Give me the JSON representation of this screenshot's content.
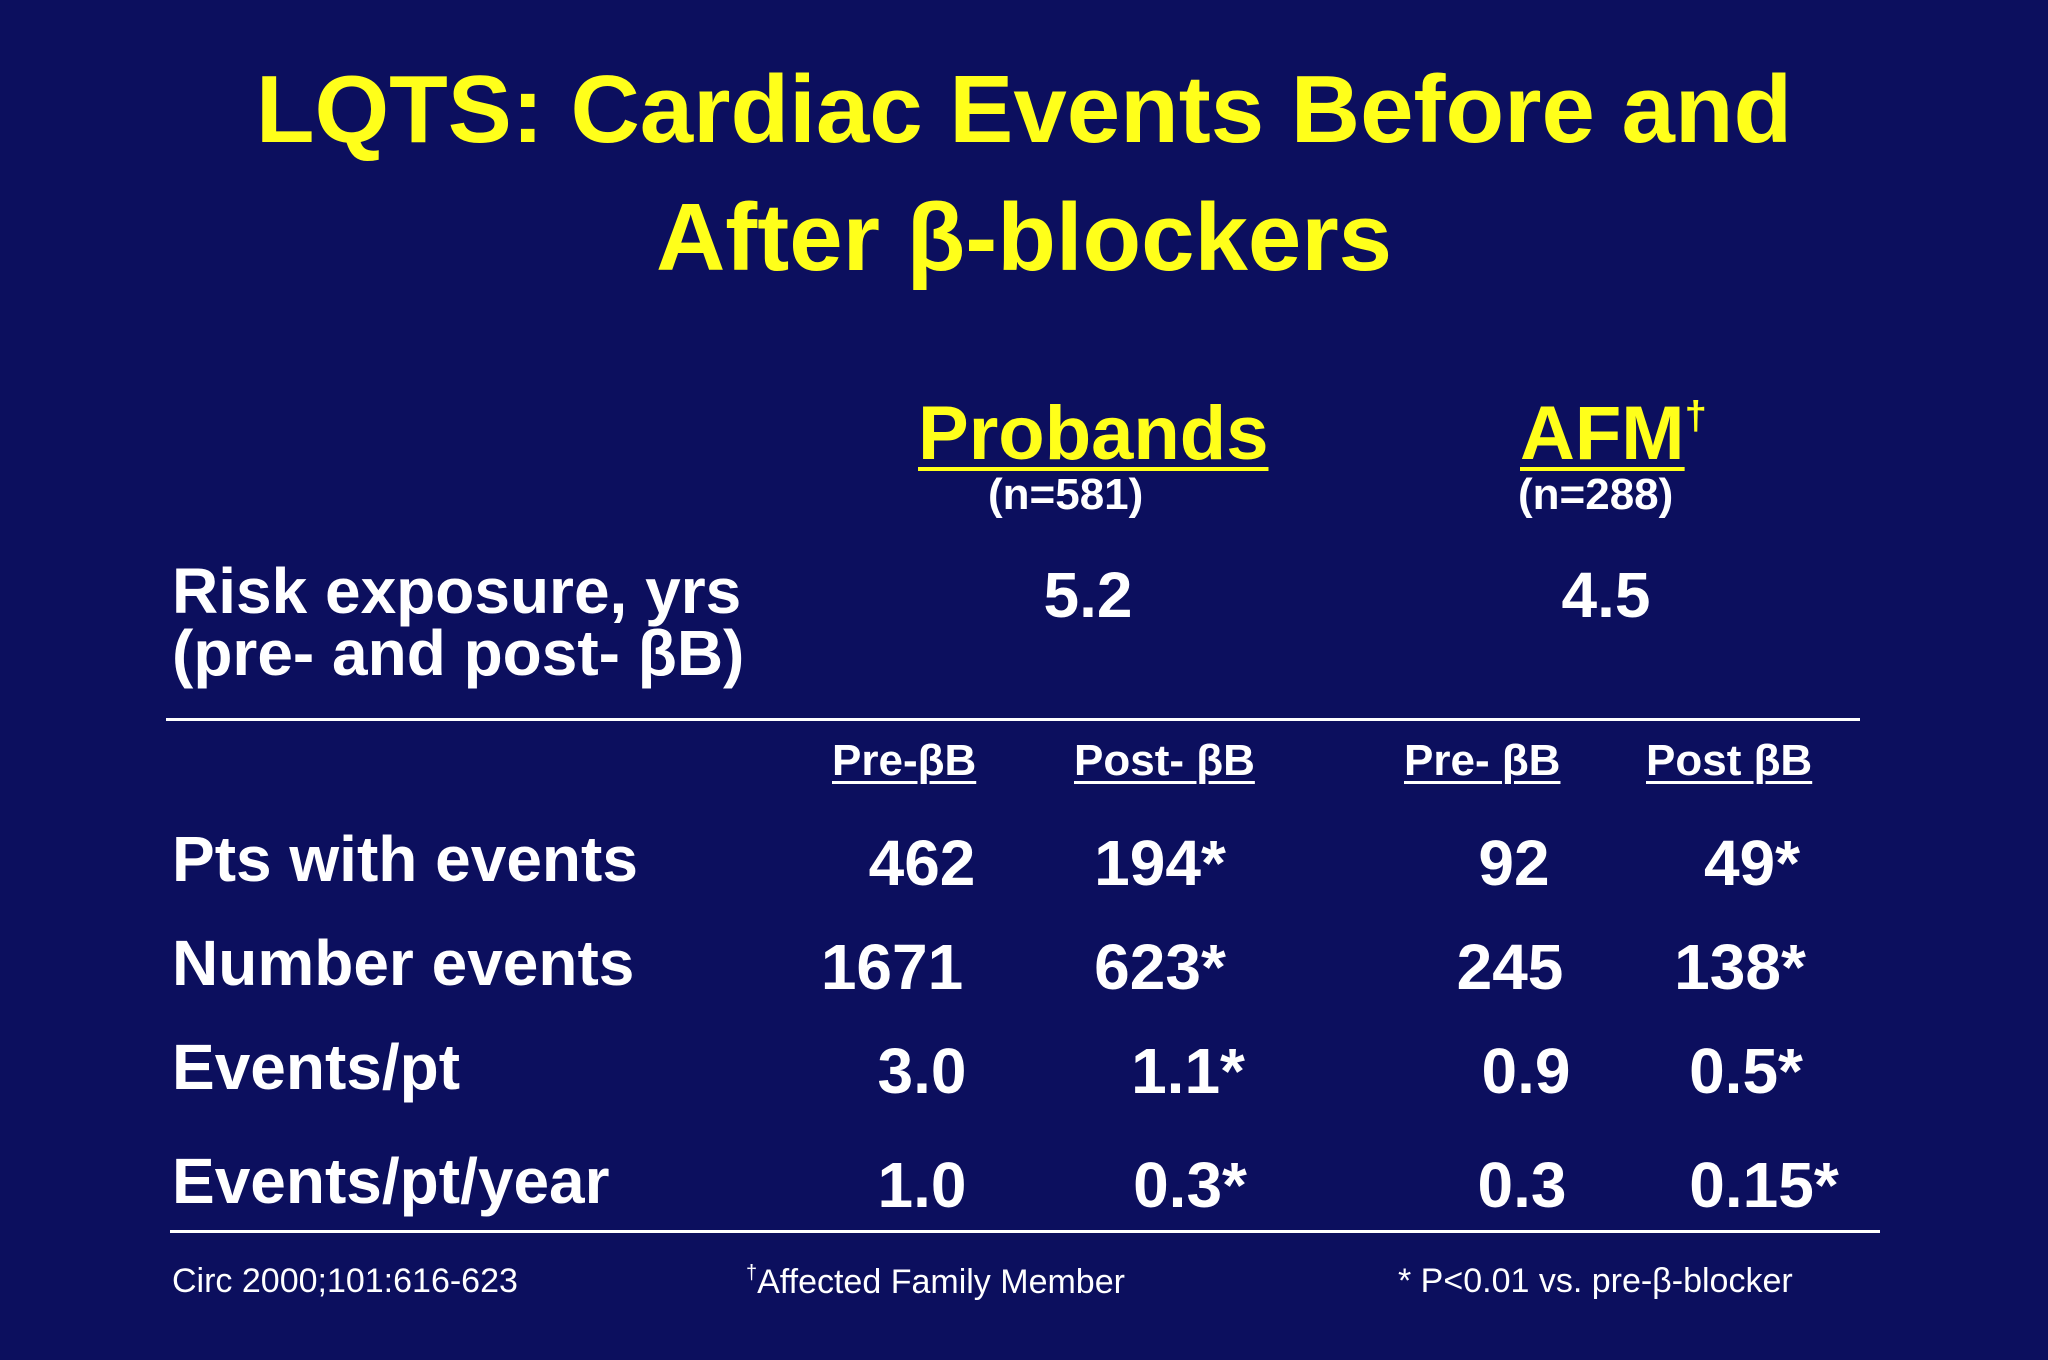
{
  "title": {
    "line1": "LQTS: Cardiac Events Before and",
    "line2": "After β-blockers"
  },
  "groups": [
    {
      "name": "Probands",
      "mark": "",
      "n": "(n=581)",
      "risk_exposure": "5.2"
    },
    {
      "name": "AFM",
      "mark": "†",
      "n": "(n=288)",
      "risk_exposure": "4.5"
    }
  ],
  "risk_label": {
    "line1": "Risk exposure, yrs",
    "line2": "(pre- and post- βB)"
  },
  "subheaders": [
    "Pre-βB",
    "Post- βB",
    "Pre- βB",
    "Post βB"
  ],
  "rows": [
    {
      "label": "Pts with events",
      "values": [
        "462",
        "194*",
        "92",
        "49*"
      ]
    },
    {
      "label": "Number events",
      "values": [
        "1671",
        "623*",
        "245",
        "138*"
      ]
    },
    {
      "label": "Events/pt",
      "values": [
        "3.0",
        "1.1*",
        "0.9",
        "0.5*"
      ]
    },
    {
      "label": "Events/pt/year",
      "values": [
        "1.0",
        "0.3*",
        "0.3",
        "0.15*"
      ]
    }
  ],
  "footer": {
    "citation": "Circ 2000;101:616-623",
    "afm_mark": "†",
    "afm_note": "Affected Family Member",
    "significance": "* P<0.01 vs. pre-β-blocker"
  },
  "colors": {
    "background": "#0c0f5e",
    "title": "#ffff1a",
    "text": "#ffffff"
  }
}
